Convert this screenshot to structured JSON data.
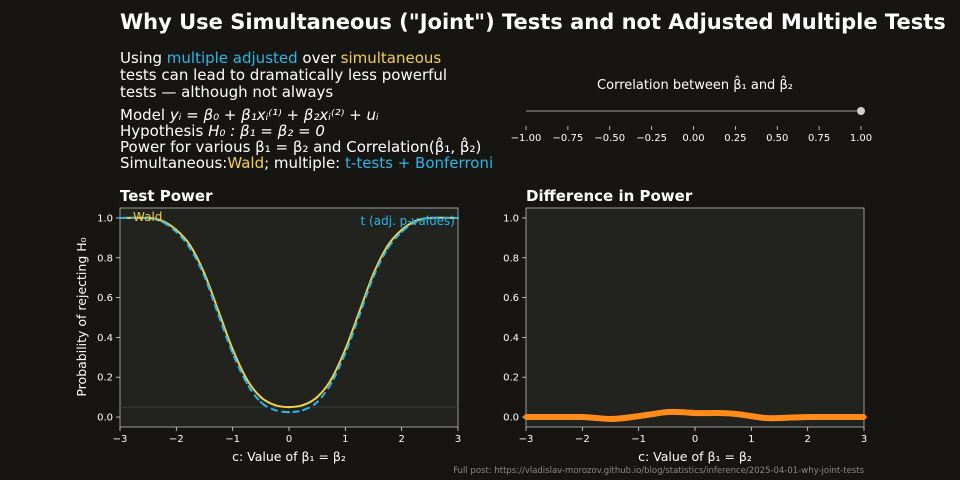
{
  "title": "Why Use Simultaneous (\"Joint\") Tests and not Adjusted Multiple Tests",
  "description": {
    "using": "Using",
    "multiple_adjusted": "multiple adjusted",
    "over": "over",
    "simultaneous": "simultaneous",
    "line2": "tests can lead to dramatically less powerful",
    "line3": "tests — although not always",
    "model_label": "Model",
    "model_eq": "yᵢ = β₀ + β₁xᵢ⁽¹⁾ + β₂xᵢ⁽²⁾ + uᵢ",
    "hypothesis_label": "Hypothesis",
    "hypothesis_eq": "H₀ : β₁ = β₂ = 0",
    "power_text": "Power for various β₁ = β₂ and Correlation(β̂₁, β̂₂)",
    "sim_label": "Simultaneous:",
    "wald": "Wald",
    "multiple_label": "; multiple:",
    "ttests": "t-tests + Bonferroni"
  },
  "slider": {
    "label": "Correlation between β̂₁ and β̂₂",
    "min": -1,
    "max": 1,
    "value": 1.0,
    "ticks": [
      "−1.00",
      "−0.75",
      "−0.50",
      "−0.25",
      "0.00",
      "0.25",
      "0.50",
      "0.75",
      "1.00"
    ]
  },
  "footer": "Full post: https://vladislav-morozov.github.io/blog/statistics/inference/2025-04-01-why-joint-tests",
  "colors": {
    "background": "#161512",
    "plot_bg": "#22231f",
    "wald": "#f2d24b",
    "ttest": "#29b6e8",
    "difference": "#ff8c1a"
  },
  "chart_data": [
    {
      "type": "line",
      "title": "Test Power",
      "xlabel": "c: Value of β₁ = β₂",
      "ylabel": "Probability of rejecting H₀",
      "xlim": [
        -3,
        3
      ],
      "ylim": [
        -0.05,
        1.05
      ],
      "x_ticks": [
        "−3",
        "−2",
        "−1",
        "0",
        "1",
        "2",
        "3"
      ],
      "y_ticks": [
        "0.0",
        "0.2",
        "0.4",
        "0.6",
        "0.8",
        "1.0"
      ],
      "reference_line": 0.05,
      "x": [
        -3.0,
        -2.5,
        -2.25,
        -2.0,
        -1.75,
        -1.5,
        -1.25,
        -1.0,
        -0.75,
        -0.5,
        -0.25,
        0.0,
        0.25,
        0.5,
        0.75,
        1.0,
        1.25,
        1.5,
        1.75,
        2.0,
        2.25,
        2.5,
        3.0
      ],
      "series": [
        {
          "name": "Wald",
          "values": [
            1.0,
            1.0,
            0.985,
            0.94,
            0.86,
            0.72,
            0.53,
            0.34,
            0.19,
            0.1,
            0.06,
            0.05,
            0.06,
            0.1,
            0.19,
            0.34,
            0.53,
            0.72,
            0.86,
            0.94,
            0.985,
            1.0,
            1.0
          ]
        },
        {
          "name": "t (adj. p-values)",
          "values": [
            1.0,
            1.0,
            0.98,
            0.93,
            0.845,
            0.705,
            0.51,
            0.32,
            0.17,
            0.075,
            0.035,
            0.025,
            0.035,
            0.075,
            0.17,
            0.32,
            0.51,
            0.705,
            0.845,
            0.93,
            0.98,
            1.0,
            1.0
          ]
        }
      ],
      "legend_labels": [
        "Wald",
        "t (adj. p-values)"
      ]
    },
    {
      "type": "line",
      "title": "Difference in Power",
      "xlabel": "c: Value of β₁ = β₂",
      "ylabel": "",
      "xlim": [
        -3,
        3
      ],
      "ylim": [
        -0.05,
        1.05
      ],
      "x_ticks": [
        "−3",
        "−2",
        "−1",
        "0",
        "1",
        "2",
        "3"
      ],
      "y_ticks": [
        "0.0",
        "0.2",
        "0.4",
        "0.6",
        "0.8",
        "1.0"
      ],
      "x": [
        -3.0,
        -2.5,
        -2.0,
        -1.75,
        -1.5,
        -1.25,
        -1.0,
        -0.75,
        -0.5,
        -0.25,
        0.0,
        0.25,
        0.5,
        0.75,
        1.0,
        1.25,
        1.5,
        2.0,
        2.5,
        3.0
      ],
      "series": [
        {
          "name": "",
          "values": [
            0.0,
            0.0,
            0.0,
            -0.005,
            -0.01,
            -0.005,
            0.005,
            0.015,
            0.025,
            0.025,
            0.02,
            0.02,
            0.02,
            0.015,
            0.005,
            -0.005,
            -0.005,
            0.0,
            0.0,
            0.0
          ]
        }
      ]
    }
  ]
}
